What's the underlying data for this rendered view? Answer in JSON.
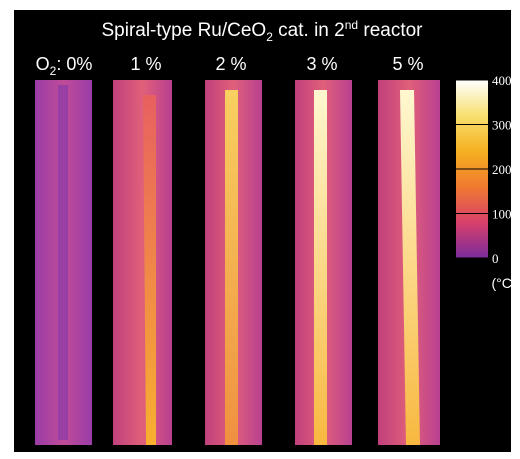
{
  "header": {
    "title_parts": [
      "Spiral-type Ru/CeO",
      "2",
      " cat. in 2",
      "nd",
      " reactor"
    ]
  },
  "panels": {
    "first_label_parts": [
      "O",
      "2",
      ": 0%"
    ],
    "labels": [
      "1 %",
      "2 %",
      "3 %",
      "5 %"
    ]
  },
  "colorbar": {
    "range": [
      0,
      400
    ],
    "ticks": [
      0,
      100,
      200,
      300,
      400
    ],
    "unit": "(°C)"
  }
}
